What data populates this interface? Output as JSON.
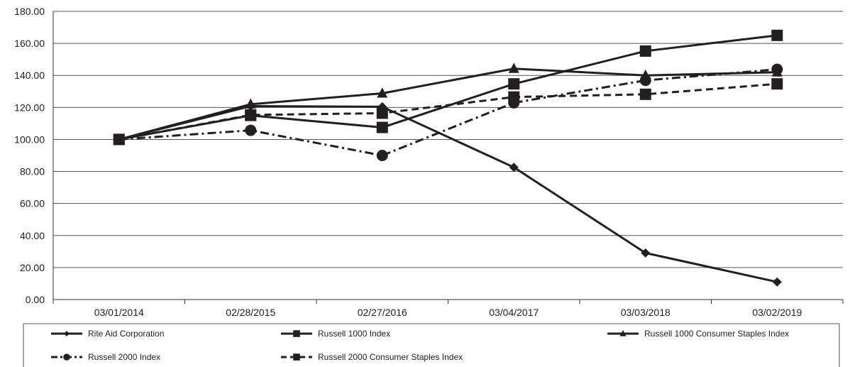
{
  "chart_data": {
    "type": "line",
    "title": "",
    "xlabel": "",
    "ylabel": "",
    "categories": [
      "03/01/2014",
      "02/28/2015",
      "02/27/2016",
      "03/04/2017",
      "03/03/2018",
      "03/02/2019"
    ],
    "ylim": [
      0,
      180
    ],
    "yticks": [
      "0.00",
      "20.00",
      "40.00",
      "60.00",
      "80.00",
      "100.00",
      "120.00",
      "140.00",
      "160.00",
      "180.00"
    ],
    "grid": "horizontal",
    "legend_position": "bottom",
    "series": [
      {
        "name": "Rite Aid Corporation",
        "values": [
          100,
          120.8,
          120.4,
          82.6,
          29.1,
          11.0
        ],
        "marker": "diamond",
        "dash": "solid"
      },
      {
        "name": "Russell 1000 Index",
        "values": [
          100,
          115.0,
          107.5,
          134.7,
          155.2,
          165.0
        ],
        "marker": "square",
        "dash": "solid"
      },
      {
        "name": "Russell 1000 Consumer Staples Index",
        "values": [
          100,
          122.0,
          128.8,
          144.2,
          140.0,
          142.0
        ],
        "marker": "triangle",
        "dash": "solid"
      },
      {
        "name": "Russell 2000 Index",
        "values": [
          100,
          105.7,
          90.0,
          122.9,
          136.9,
          143.8
        ],
        "marker": "circle",
        "dash": "dashdot"
      },
      {
        "name": "Russell 2000 Consumer Staples Index",
        "values": [
          100,
          115.3,
          116.4,
          126.5,
          128.2,
          134.7
        ],
        "marker": "square",
        "dash": "dashed"
      }
    ],
    "line_color": "#231f20"
  }
}
